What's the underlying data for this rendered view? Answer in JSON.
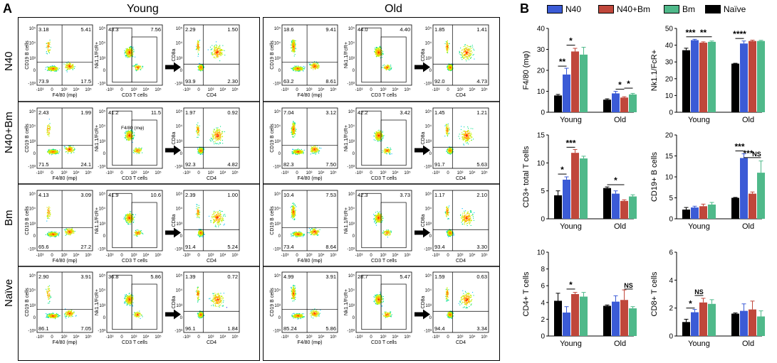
{
  "panel_a": {
    "letter": "A",
    "young_title": "Young",
    "old_title": "Old",
    "row_labels": [
      "N40",
      "N40+Bm",
      "Bm",
      "Naïve"
    ],
    "axis": {
      "cd19": "CD19 B cells",
      "f480": "F4/80 (mφ)",
      "nk": "Nk1.1/FcR+",
      "cd3": "CD3 T cells",
      "cd8": "CD8a",
      "cd4": "CD4",
      "tick_e5": "10⁵",
      "tick_e4": "10⁴",
      "tick_e3": "10³",
      "tick_0": "0",
      "tick_ne3": "-10³",
      "x_ticks": [
        "-10³",
        "0",
        "10³",
        "10⁴",
        "10⁵"
      ]
    },
    "inset_label": "F4/80 (mφ)",
    "young": [
      {
        "b_tl": "3.18",
        "b_tr": "5.41",
        "b_bl": "73.9",
        "b_br": "17.5",
        "nk_l": "43.3",
        "nk_r": "7.56",
        "t_tl": "2.29",
        "t_tr": "1.50",
        "t_bl": "93.9",
        "t_br": "2.30"
      },
      {
        "b_tl": "2.43",
        "b_tr": "1.99",
        "b_bl": "71.5",
        "b_br": "24.1",
        "nk_l": "41.2",
        "nk_r": "11.5",
        "t_tl": "1.97",
        "t_tr": "0.92",
        "t_bl": "92.3",
        "t_br": "4.82"
      },
      {
        "b_tl": "4.13",
        "b_tr": "3.09",
        "b_bl": "65.6",
        "b_br": "27.2",
        "nk_l": "41.9",
        "nk_r": "10.6",
        "t_tl": "2.39",
        "t_tr": "1.00",
        "t_bl": "91.4",
        "t_br": "5.24"
      },
      {
        "b_tl": "2.90",
        "b_tr": "3.91",
        "b_bl": "86.1",
        "b_br": "7.05",
        "nk_l": "36.8",
        "nk_r": "5.86",
        "t_tl": "1.39",
        "t_tr": "0.72",
        "t_bl": "96.1",
        "t_br": "1.84"
      }
    ],
    "old": [
      {
        "b_tl": "18.6",
        "b_tr": "9.41",
        "b_bl": "63.2",
        "b_br": "8.61",
        "nk_l": "44.0",
        "nk_r": "4.40",
        "t_tl": "1.85",
        "t_tr": "1.41",
        "t_bl": "92.0",
        "t_br": "4.73"
      },
      {
        "b_tl": "7.04",
        "b_tr": "3.12",
        "b_bl": "82.3",
        "b_br": "7.50",
        "nk_l": "42.2",
        "nk_r": "3.42",
        "t_tl": "1.45",
        "t_tr": "1.21",
        "t_bl": "91.7",
        "t_br": "5.63"
      },
      {
        "b_tl": "10.4",
        "b_tr": "7.53",
        "b_bl": "73.4",
        "b_br": "8.64",
        "nk_l": "42.3",
        "nk_r": "3.73",
        "t_tl": "1.17",
        "t_tr": "2.10",
        "t_bl": "93.4",
        "t_br": "3.30"
      },
      {
        "b_tl": "4.99",
        "b_tr": "3.91",
        "b_bl": "85.24",
        "b_br": "5.86",
        "nk_l": "28.7",
        "nk_r": "5.47",
        "t_tl": "1.59",
        "t_tr": "0.63",
        "t_bl": "94.4",
        "t_br": "3.34"
      }
    ]
  },
  "panel_b": {
    "letter": "B",
    "legend": [
      "N40",
      "N40+Bm",
      "Bm",
      "Naïve"
    ],
    "colors": {
      "N40": "#3b5bd6",
      "N40+Bm": "#c0473b",
      "Bm": "#4fb98a",
      "Naive": "#000000"
    }
  },
  "chart_data": [
    {
      "type": "bar",
      "ylabel": "F4/80 (mφ)",
      "ylim": [
        0,
        40
      ],
      "yticks": [
        "0",
        "10",
        "20",
        "30",
        "40"
      ],
      "categories": [
        "Young",
        "Old"
      ],
      "series": [
        {
          "name": "Naïve",
          "values": [
            8,
            6
          ],
          "err": [
            0.5,
            0.4
          ]
        },
        {
          "name": "N40",
          "values": [
            18,
            9
          ],
          "err": [
            3,
            1
          ]
        },
        {
          "name": "N40+Bm",
          "values": [
            29,
            7
          ],
          "err": [
            1.5,
            0.4
          ]
        },
        {
          "name": "Bm",
          "values": [
            27.5,
            8.5
          ],
          "err": [
            3.5,
            0.5
          ]
        }
      ],
      "sig": [
        {
          "g": 0,
          "a": 0,
          "b": 1,
          "y": 22,
          "label": "**"
        },
        {
          "g": 0,
          "a": 1,
          "b": 2,
          "y": 32,
          "label": "*"
        },
        {
          "g": 1,
          "a": 1,
          "b": 2,
          "y": 11,
          "label": "*"
        },
        {
          "g": 1,
          "a": 2,
          "b": 3,
          "y": 11.5,
          "label": "*"
        }
      ]
    },
    {
      "type": "bar",
      "ylabel": "Nk1.1/FcR+",
      "ylim": [
        0,
        50
      ],
      "yticks": [
        "0",
        "10",
        "20",
        "30",
        "40",
        "50"
      ],
      "categories": [
        "Young",
        "Old"
      ],
      "series": [
        {
          "name": "Naïve",
          "values": [
            37,
            29
          ],
          "err": [
            1.2,
            0.2
          ]
        },
        {
          "name": "N40",
          "values": [
            43,
            41
          ],
          "err": [
            0.5,
            1.5
          ]
        },
        {
          "name": "N40+Bm",
          "values": [
            41.5,
            42.5
          ],
          "err": [
            0.5,
            0.5
          ]
        },
        {
          "name": "Bm",
          "values": [
            42,
            42.5
          ],
          "err": [
            0.5,
            0.4
          ]
        }
      ],
      "sig": [
        {
          "g": 0,
          "a": 0,
          "b": 1,
          "y": 45,
          "label": "***"
        },
        {
          "g": 0,
          "a": 1,
          "b": 3,
          "y": 45,
          "label": "**"
        },
        {
          "g": 1,
          "a": 0,
          "b": 1,
          "y": 44,
          "label": "****"
        }
      ]
    },
    {
      "type": "bar",
      "ylabel": "CD3+ total T cells",
      "ylim": [
        0,
        15
      ],
      "yticks": [
        "0",
        "5",
        "10",
        "15"
      ],
      "categories": [
        "Young",
        "Old"
      ],
      "series": [
        {
          "name": "Naïve",
          "values": [
            4.2,
            5.5
          ],
          "err": [
            0.8,
            0.2
          ]
        },
        {
          "name": "N40",
          "values": [
            7,
            4.5
          ],
          "err": [
            0.5,
            0.5
          ]
        },
        {
          "name": "N40+Bm",
          "values": [
            11.8,
            3.2
          ],
          "err": [
            0.6,
            0.2
          ]
        },
        {
          "name": "Bm",
          "values": [
            10.8,
            4
          ],
          "err": [
            0.4,
            0.3
          ]
        }
      ],
      "sig": [
        {
          "g": 0,
          "a": 0,
          "b": 1,
          "y": 8,
          "label": "*"
        },
        {
          "g": 0,
          "a": 1,
          "b": 2,
          "y": 12.8,
          "label": "***"
        },
        {
          "g": 1,
          "a": 0,
          "b": 2,
          "y": 6.1,
          "label": "*"
        }
      ]
    },
    {
      "type": "bar",
      "ylabel": "CD19+ B cells",
      "ylim": [
        0,
        20
      ],
      "yticks": [
        "0",
        "5",
        "10",
        "15",
        "20"
      ],
      "categories": [
        "Young",
        "Old"
      ],
      "series": [
        {
          "name": "Naïve",
          "values": [
            2.2,
            5
          ],
          "err": [
            0.5,
            0.1
          ]
        },
        {
          "name": "N40",
          "values": [
            2.7,
            14.5
          ],
          "err": [
            0.3,
            1
          ]
        },
        {
          "name": "N40+Bm",
          "values": [
            3,
            6
          ],
          "err": [
            0.5,
            0.4
          ]
        },
        {
          "name": "Bm",
          "values": [
            3.4,
            11
          ],
          "err": [
            0.5,
            2.8
          ]
        }
      ],
      "sig": [
        {
          "g": 1,
          "a": 0,
          "b": 1,
          "y": 16.2,
          "label": "***"
        },
        {
          "g": 1,
          "a": 1,
          "b": 2,
          "y": 14.6,
          "label": "***"
        },
        {
          "g": 1,
          "a": 2,
          "b": 3,
          "y": 14.6,
          "label": "NS"
        }
      ]
    },
    {
      "type": "bar",
      "ylabel": "CD4+ T cells",
      "ylim": [
        0,
        10
      ],
      "yticks": [
        "0",
        "2",
        "4",
        "6",
        "8",
        "10"
      ],
      "categories": [
        "Young",
        "Old"
      ],
      "series": [
        {
          "name": "Naïve",
          "values": [
            4.2,
            3.6
          ],
          "err": [
            0.9,
            0.1
          ]
        },
        {
          "name": "N40",
          "values": [
            2.8,
            4.1
          ],
          "err": [
            0.7,
            0.7
          ]
        },
        {
          "name": "N40+Bm",
          "values": [
            5,
            4.3
          ],
          "err": [
            0.2,
            1.2
          ]
        },
        {
          "name": "Bm",
          "values": [
            4.7,
            3.3
          ],
          "err": [
            0.5,
            0.2
          ]
        }
      ],
      "sig": [
        {
          "g": 0,
          "a": 1,
          "b": 2,
          "y": 5.6,
          "label": "*"
        },
        {
          "g": 1,
          "a": 2,
          "b": 3,
          "y": 5.6,
          "label": "NS"
        }
      ]
    },
    {
      "type": "bar",
      "ylabel": "CD8+ T cells",
      "ylim": [
        0,
        6
      ],
      "yticks": [
        "0",
        "2",
        "4",
        "6"
      ],
      "categories": [
        "Young",
        "Old"
      ],
      "series": [
        {
          "name": "Naïve",
          "values": [
            1,
            1.6
          ],
          "err": [
            0.2,
            0.05
          ]
        },
        {
          "name": "N40",
          "values": [
            1.7,
            1.8
          ],
          "err": [
            0.2,
            0.5
          ]
        },
        {
          "name": "N40+Bm",
          "values": [
            2.4,
            1.9
          ],
          "err": [
            0.3,
            0.6
          ]
        },
        {
          "name": "Bm",
          "values": [
            2.3,
            1.4
          ],
          "err": [
            0.3,
            0.4
          ]
        }
      ],
      "sig": [
        {
          "g": 0,
          "a": 0,
          "b": 1,
          "y": 2,
          "label": "*"
        },
        {
          "g": 0,
          "a": 1,
          "b": 2,
          "y": 2.9,
          "label": "NS"
        }
      ]
    }
  ]
}
